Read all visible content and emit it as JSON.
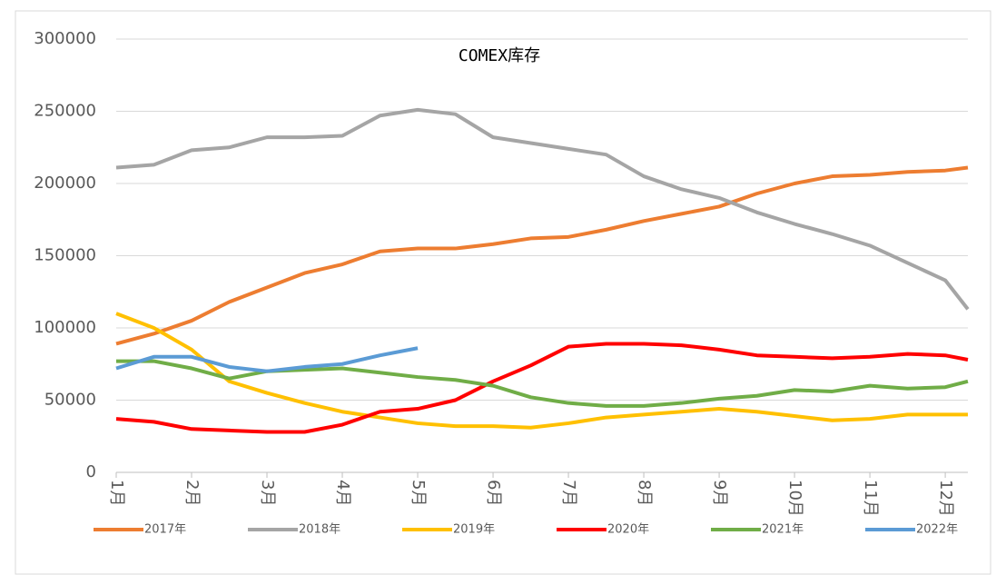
{
  "chart_data": {
    "type": "line",
    "title": "COMEX库存",
    "x": [
      1,
      1.5,
      2,
      2.5,
      3,
      3.5,
      4,
      4.5,
      5,
      5.5,
      6,
      6.5,
      7,
      7.5,
      8,
      8.5,
      9,
      9.5,
      10,
      10.5,
      11,
      11.5,
      12,
      12.3
    ],
    "xlim": [
      1,
      12.3
    ],
    "xticks": [
      {
        "value": 1,
        "label": "1月"
      },
      {
        "value": 2,
        "label": "2月"
      },
      {
        "value": 3,
        "label": "3月"
      },
      {
        "value": 4,
        "label": "4月"
      },
      {
        "value": 5,
        "label": "5月"
      },
      {
        "value": 6,
        "label": "6月"
      },
      {
        "value": 7,
        "label": "7月"
      },
      {
        "value": 8,
        "label": "8月"
      },
      {
        "value": 9,
        "label": "9月"
      },
      {
        "value": 10,
        "label": "10月"
      },
      {
        "value": 11,
        "label": "11月"
      },
      {
        "value": 12,
        "label": "12月"
      }
    ],
    "ylim": [
      0,
      300000
    ],
    "yticks": [
      0,
      50000,
      100000,
      150000,
      200000,
      250000,
      300000
    ],
    "grid": true,
    "legend": "bottom",
    "series": [
      {
        "name": "2017年",
        "color": "#ED7D31",
        "values": [
          89000,
          96000,
          105000,
          118000,
          128000,
          138000,
          144000,
          153000,
          155000,
          155000,
          158000,
          162000,
          163000,
          168000,
          174000,
          179000,
          184000,
          193000,
          200000,
          205000,
          206000,
          208000,
          209000,
          211000
        ]
      },
      {
        "name": "2018年",
        "color": "#A5A5A5",
        "values": [
          211000,
          213000,
          223000,
          225000,
          232000,
          232000,
          233000,
          247000,
          251000,
          248000,
          232000,
          228000,
          224000,
          220000,
          205000,
          196000,
          190000,
          180000,
          172000,
          165000,
          157000,
          145000,
          133000,
          113000
        ]
      },
      {
        "name": "2019年",
        "color": "#FFC000",
        "values": [
          110000,
          100000,
          85000,
          63000,
          55000,
          48000,
          42000,
          38000,
          34000,
          32000,
          32000,
          31000,
          34000,
          38000,
          40000,
          42000,
          44000,
          42000,
          39000,
          36000,
          37000,
          40000,
          40000,
          40000
        ]
      },
      {
        "name": "2020年",
        "color": "#FF0000",
        "values": [
          37000,
          35000,
          30000,
          29000,
          28000,
          28000,
          33000,
          42000,
          44000,
          50000,
          63000,
          74000,
          87000,
          89000,
          89000,
          88000,
          85000,
          81000,
          80000,
          79000,
          80000,
          82000,
          81000,
          78000
        ]
      },
      {
        "name": "2021年",
        "color": "#70AD47",
        "values": [
          77000,
          77000,
          72000,
          65000,
          70000,
          71000,
          72000,
          69000,
          66000,
          64000,
          60000,
          52000,
          48000,
          46000,
          46000,
          48000,
          51000,
          53000,
          57000,
          56000,
          60000,
          58000,
          59000,
          63000
        ]
      },
      {
        "name": "2022年",
        "color": "#5B9BD5",
        "values": [
          72000,
          80000,
          80000,
          73000,
          70000,
          73000,
          75000,
          81000,
          86000,
          null,
          null,
          null,
          null,
          null,
          null,
          null,
          null,
          null,
          null,
          null,
          null,
          null,
          null,
          null
        ]
      }
    ]
  }
}
